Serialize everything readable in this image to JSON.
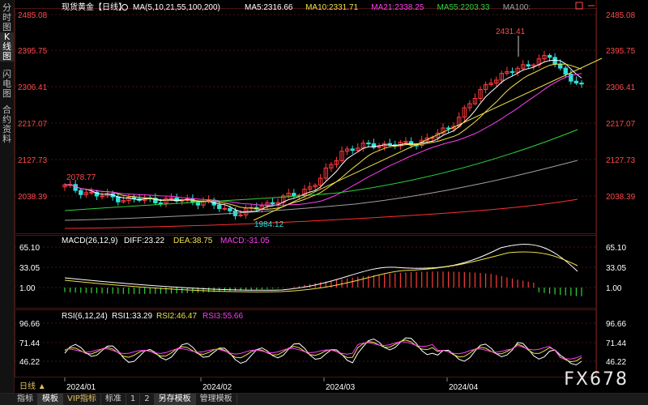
{
  "side_tabs": [
    {
      "label": "分时图",
      "active": false
    },
    {
      "label": "K线图",
      "active": true
    },
    {
      "label": "闪电图",
      "active": false
    },
    {
      "label": "合约资料",
      "active": false
    }
  ],
  "header": {
    "symbol": "现货黄金【日线】",
    "ma_label": "MA(5,10,21,55,100,200)",
    "ma_values": [
      {
        "text": "MA5:2316.66",
        "color": "#ffffff"
      },
      {
        "text": "MA10:2331.71",
        "color": "#f0e04a"
      },
      {
        "text": "MA21:2338.25",
        "color": "#ff3df5"
      },
      {
        "text": "MA55:2203.33",
        "color": "#2fd33b"
      },
      {
        "text": "MA100:",
        "color": "#a0a0a0"
      }
    ]
  },
  "price_axis": [
    "2485.08",
    "2395.75",
    "2306.41",
    "2217.07",
    "2127.73",
    "2038.39"
  ],
  "annotations": {
    "high": "2431.41",
    "low": "1984.12",
    "left": "2078.77"
  },
  "macd": {
    "label": "MACD(26,12,9)",
    "diff": "DIFF:23.22",
    "dea": "DEA:38.75",
    "macd": "MACD:-31.05",
    "axis": [
      "65.10",
      "33.05",
      "1.00"
    ]
  },
  "rsi": {
    "label": "RSI(6,12,24)",
    "rsi1": "RSI1:33.29",
    "rsi2": "RSI2:46.47",
    "rsi3": "RSI3:55.66",
    "axis": [
      "96.66",
      "71.44",
      "46.22"
    ]
  },
  "period_label": "日线 ▲",
  "dates": [
    "2024/01",
    "2024/02",
    "2024/03",
    "2024/04"
  ],
  "bottom_tabs": [
    {
      "label": "指标",
      "active": false,
      "vip": false
    },
    {
      "label": "模板",
      "active": true,
      "vip": false
    },
    {
      "label": "VIP指标",
      "active": false,
      "vip": true
    },
    {
      "label": "标准",
      "active": false,
      "vip": false
    },
    {
      "label": "1",
      "active": false,
      "vip": false
    },
    {
      "label": "2",
      "active": false,
      "vip": false
    },
    {
      "label": "另存模板",
      "active": true,
      "vip": false
    },
    {
      "label": "管理模板",
      "active": false,
      "vip": false
    }
  ],
  "watermark": "FX678",
  "colors": {
    "up": "#ff3b3b",
    "down": "#2fe0d9",
    "grid": "#4a1515",
    "axis_text": "#ff4a4a"
  }
}
